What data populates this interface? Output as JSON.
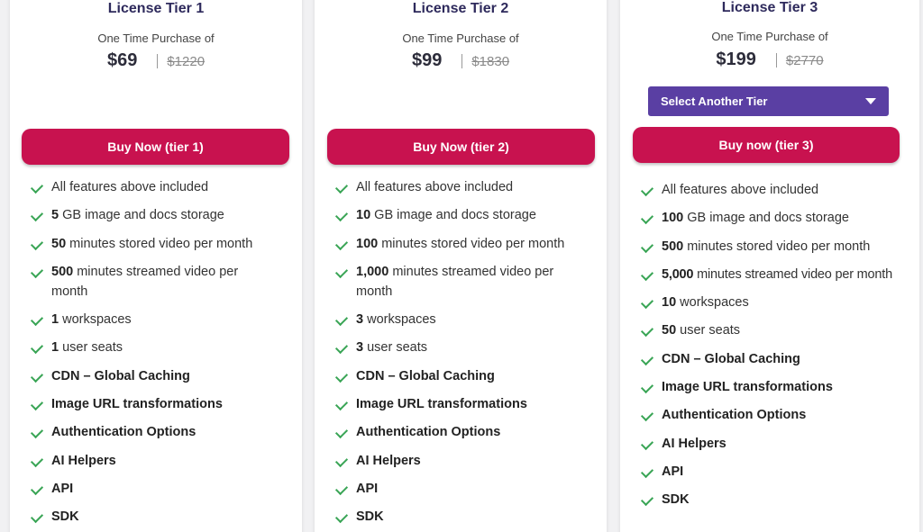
{
  "tiers": [
    {
      "title": "License Tier 1",
      "purchase_label": "One Time Purchase of",
      "price": "$69",
      "old_price": "$1220",
      "button_label": "Buy Now (tier 1)",
      "features": [
        {
          "bold": "",
          "text": "All features above included"
        },
        {
          "bold": "5",
          "text": " GB image and docs storage"
        },
        {
          "bold": "50",
          "text": " minutes stored video per month"
        },
        {
          "bold": "500",
          "text": " minutes streamed video per month"
        },
        {
          "bold": "1",
          "text": " workspaces"
        },
        {
          "bold": "1",
          "text": " user seats"
        },
        {
          "bold": "CDN – Global Caching",
          "text": ""
        },
        {
          "bold": "Image URL transformations",
          "text": ""
        },
        {
          "bold": "Authentication Options",
          "text": ""
        },
        {
          "bold": "AI Helpers",
          "text": ""
        },
        {
          "bold": "API",
          "text": ""
        },
        {
          "bold": "SDK",
          "text": ""
        }
      ]
    },
    {
      "title": "License Tier 2",
      "purchase_label": "One Time Purchase of",
      "price": "$99",
      "old_price": "$1830",
      "button_label": "Buy Now (tier 2)",
      "features": [
        {
          "bold": "",
          "text": "All features above included"
        },
        {
          "bold": "10",
          "text": " GB image and docs storage"
        },
        {
          "bold": "100",
          "text": " minutes stored video per month"
        },
        {
          "bold": "1,000",
          "text": " minutes streamed video per month"
        },
        {
          "bold": "3",
          "text": " workspaces"
        },
        {
          "bold": "3",
          "text": " user seats"
        },
        {
          "bold": "CDN – Global Caching",
          "text": ""
        },
        {
          "bold": "Image URL transformations",
          "text": ""
        },
        {
          "bold": "Authentication Options",
          "text": ""
        },
        {
          "bold": "AI Helpers",
          "text": ""
        },
        {
          "bold": "API",
          "text": ""
        },
        {
          "bold": "SDK",
          "text": ""
        }
      ]
    },
    {
      "title": "License Tier 3",
      "purchase_label": "One Time Purchase of",
      "price": "$199",
      "old_price": "$2770",
      "select_label": "Select Another Tier",
      "button_label": "Buy now (tier 3)",
      "features": [
        {
          "bold": "",
          "text": "All features above included"
        },
        {
          "bold": "100",
          "text": " GB image and docs storage"
        },
        {
          "bold": "500",
          "text": " minutes stored video per month"
        },
        {
          "bold": "5,000",
          "text": " minutes streamed video per month"
        },
        {
          "bold": "10",
          "text": " workspaces"
        },
        {
          "bold": "50",
          "text": " user seats"
        },
        {
          "bold": "CDN – Global Caching",
          "text": ""
        },
        {
          "bold": "Image URL transformations",
          "text": ""
        },
        {
          "bold": "Authentication Options",
          "text": ""
        },
        {
          "bold": "AI Helpers",
          "text": ""
        },
        {
          "bold": "API",
          "text": ""
        },
        {
          "bold": "SDK",
          "text": ""
        }
      ]
    }
  ],
  "colors": {
    "accent_button": "#c8124f",
    "select_button": "#5a3fa3",
    "check": "#3aa556",
    "title": "#2e2a5c"
  }
}
